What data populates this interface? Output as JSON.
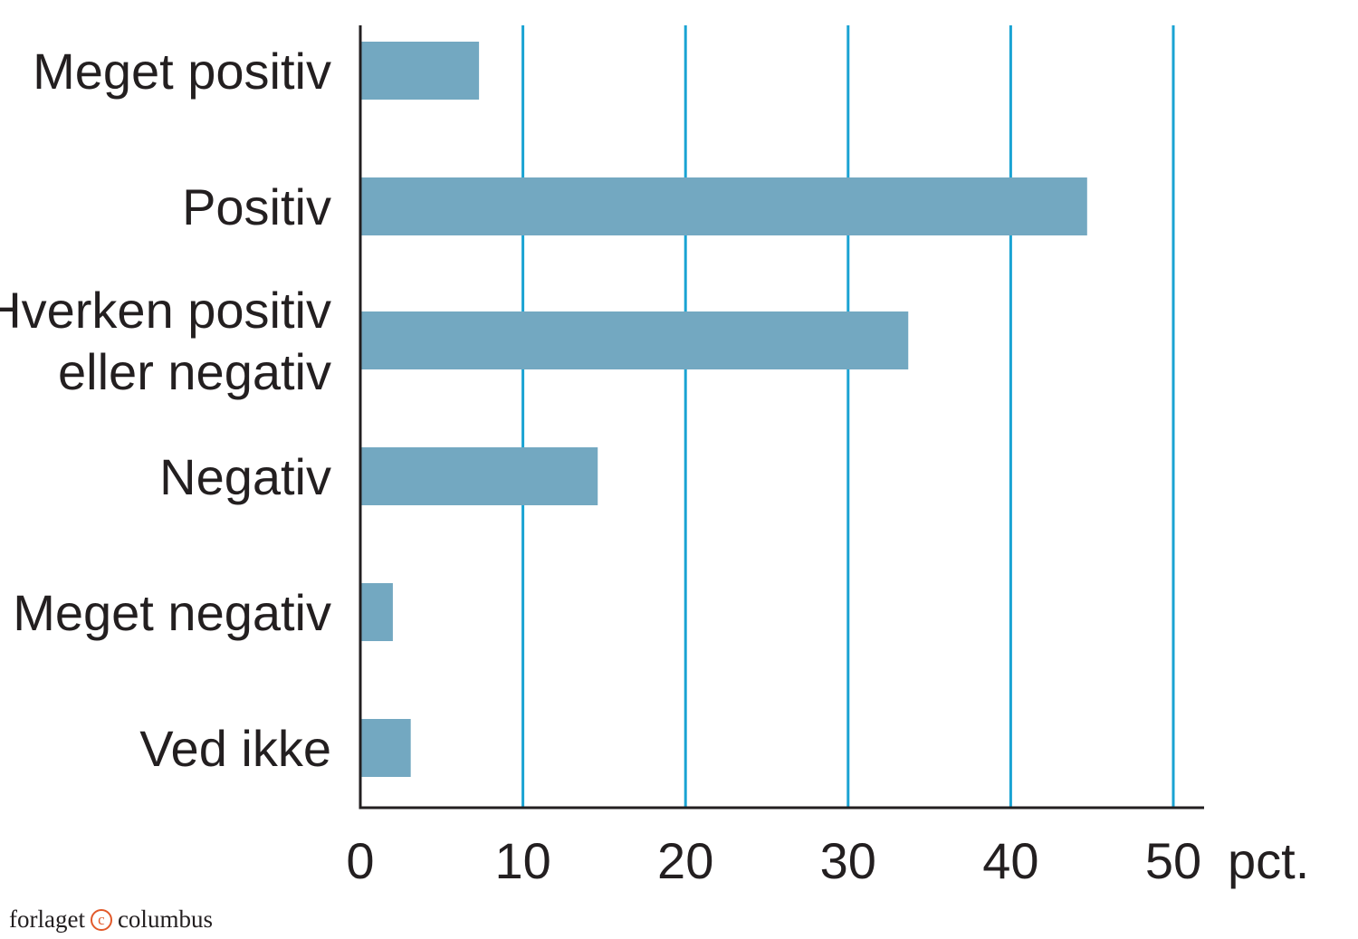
{
  "chart_data": {
    "type": "bar",
    "orientation": "horizontal",
    "categories": [
      [
        "Meget positiv"
      ],
      [
        "Positiv"
      ],
      [
        "Hverken positiv",
        "eller negativ"
      ],
      [
        "Negativ"
      ],
      [
        "Meget negativ"
      ],
      [
        "Ved ikke"
      ]
    ],
    "values": [
      7.3,
      44.7,
      33.7,
      14.6,
      2.0,
      3.1
    ],
    "xlim": [
      0,
      50
    ],
    "xticks": [
      "0",
      "10",
      "20",
      "30",
      "40",
      "50"
    ],
    "xunit": "pct.",
    "grid": "vertical",
    "bar_color": "#73a8c1",
    "grid_color": "#1aa3d3",
    "axis_color": "#231f20"
  },
  "credit": {
    "left": "forlaget",
    "symbol": "c",
    "right": "columbus",
    "symbol_color": "#e2592a"
  }
}
